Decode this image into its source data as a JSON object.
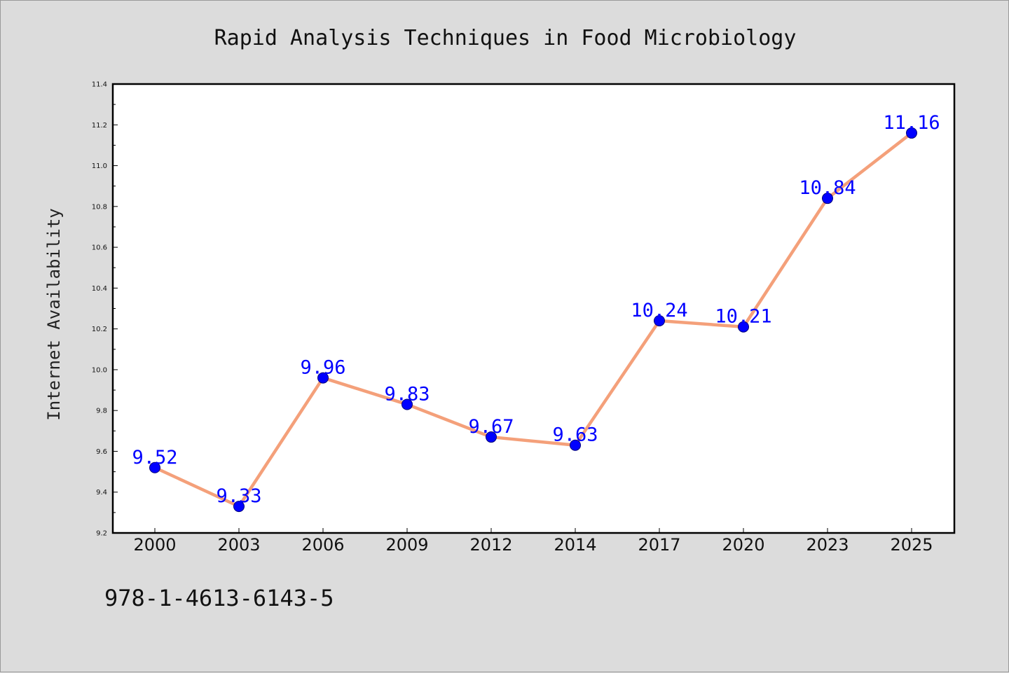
{
  "chart_data": {
    "type": "line",
    "title": "Rapid Analysis Techniques in Food Microbiology",
    "xlabel": "",
    "ylabel": "Internet Availability",
    "categories": [
      "2000",
      "2003",
      "2006",
      "2009",
      "2012",
      "2014",
      "2017",
      "2020",
      "2023",
      "2025"
    ],
    "values": [
      9.52,
      9.33,
      9.96,
      9.83,
      9.67,
      9.63,
      10.24,
      10.21,
      10.84,
      11.16
    ],
    "data_labels": [
      "9.52",
      "9.33",
      "9.96",
      "9.83",
      "9.67",
      "9.63",
      "10.24",
      "10.21",
      "10.84",
      "11.16"
    ],
    "ylim": [
      9.2,
      11.4
    ],
    "yticks": [
      "9.2",
      "9.4",
      "9.6",
      "9.8",
      "10.0",
      "10.2",
      "10.4",
      "10.6",
      "10.8",
      "11.0",
      "11.2",
      "11.4"
    ],
    "grid": false,
    "colors": {
      "line": "#f4a07a",
      "marker": "#0000ff",
      "label": "#0000ff",
      "axes_bg": "#ffffff",
      "figure_bg": "#dcdcdc"
    }
  },
  "footer": {
    "isbn": "978-1-4613-6143-5"
  }
}
